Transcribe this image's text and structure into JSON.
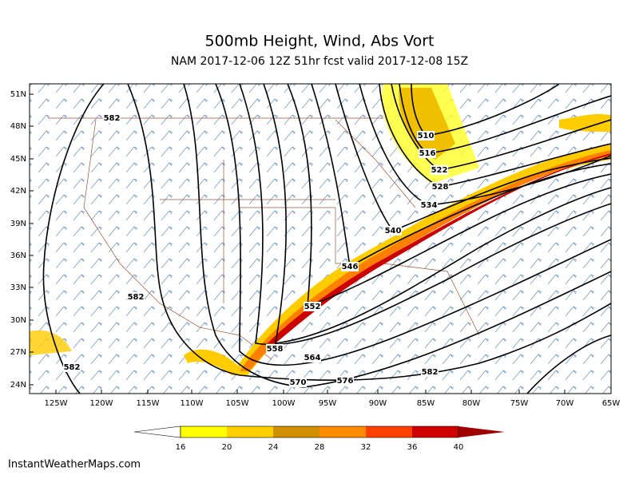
{
  "header": {
    "title": "500mb Height, Wind, Abs Vort",
    "subtitle": "NAM 2017-12-06 12Z 51hr fcst valid 2017-12-08 15Z"
  },
  "map": {
    "latitude_labels": [
      "51N",
      "48N",
      "45N",
      "42N",
      "39N",
      "36N",
      "33N",
      "30N",
      "27N",
      "24N"
    ],
    "longitude_labels": [
      "125W",
      "120W",
      "115W",
      "110W",
      "105W",
      "100W",
      "95W",
      "90W",
      "85W",
      "80W",
      "75W",
      "70W",
      "65W"
    ],
    "contour_labels": [
      "582",
      "510",
      "516",
      "522",
      "528",
      "534",
      "540",
      "546",
      "552",
      "558",
      "564",
      "570",
      "576",
      "582",
      "582",
      "582"
    ]
  },
  "colorbar": {
    "labels": [
      "16",
      "20",
      "24",
      "28",
      "32",
      "36",
      "40"
    ]
  },
  "footer": {
    "credit": "InstantWeatherMaps.com"
  }
}
